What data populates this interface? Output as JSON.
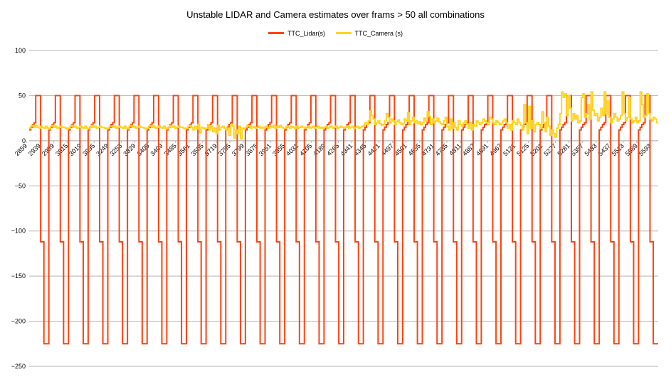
{
  "chart_data": {
    "type": "line",
    "title": "Unstable LIDAR and Camera estimates over frams > 50 all combinations",
    "xlabel": "",
    "ylabel": "",
    "ylim": [
      -250,
      100
    ],
    "y_ticks": [
      100,
      50,
      0,
      -50,
      -100,
      -150,
      -200,
      -250
    ],
    "grid": "horizontal-only",
    "legend_position": "top-center",
    "x_tick_labels": [
      "2859",
      "2939",
      "2989",
      "3015",
      "3019",
      "3095",
      "3249",
      "3253",
      "3329",
      "3405",
      "3409",
      "3485",
      "3561",
      "3565",
      "3719",
      "3795",
      "3799",
      "3875",
      "3951",
      "3955",
      "4031",
      "4105",
      "4189",
      "4265",
      "4341",
      "4345",
      "4421",
      "4497",
      "4501",
      "4655",
      "4731",
      "4735",
      "4811",
      "4887",
      "4891",
      "4967",
      "5121",
      "5125",
      "5201",
      "5277",
      "5281",
      "5357",
      "5433",
      "5437",
      "5513",
      "5589",
      "5593"
    ],
    "series": [
      {
        "name": "TTC_Lidar(s)",
        "color": "#ff420e"
      },
      {
        "name": "TTC_Camera (s)",
        "color": "#ffd320"
      }
    ],
    "cycles": 32,
    "lidar_cycle": [
      12,
      15,
      18,
      20,
      50,
      50,
      50,
      -112,
      -112,
      -225,
      -225,
      -225
    ],
    "camera_cycles": [
      [
        14,
        16,
        17,
        15,
        17,
        15,
        14,
        16,
        15,
        14,
        16,
        14
      ],
      [
        13,
        16,
        17,
        15,
        16,
        14,
        15,
        16,
        15,
        15,
        14,
        13
      ],
      [
        14,
        16,
        17,
        15,
        16,
        14,
        15,
        16,
        15,
        14,
        16,
        14
      ],
      [
        13,
        15,
        17,
        15,
        16,
        14,
        15,
        16,
        15,
        15,
        14,
        13
      ],
      [
        14,
        16,
        16,
        15,
        16,
        14,
        15,
        16,
        15,
        14,
        16,
        14
      ],
      [
        13,
        16,
        17,
        15,
        16,
        14,
        15,
        16,
        15,
        15,
        14,
        13
      ],
      [
        14,
        16,
        17,
        15,
        16,
        14,
        15,
        16,
        15,
        14,
        16,
        14
      ],
      [
        13,
        15,
        17,
        15,
        16,
        14,
        15,
        16,
        15,
        15,
        14,
        13
      ],
      [
        14,
        16,
        17,
        15,
        12,
        16,
        13,
        18,
        9,
        15,
        14,
        13
      ],
      [
        14,
        18,
        12,
        16,
        10,
        14,
        8,
        17,
        12,
        15,
        16,
        14
      ],
      [
        12,
        14,
        6,
        18,
        16,
        3,
        12,
        8,
        16,
        2,
        14,
        13
      ],
      [
        15,
        17,
        16,
        14,
        15,
        16,
        14,
        15,
        16,
        14,
        15,
        14
      ],
      [
        16,
        15,
        14,
        16,
        15,
        17,
        14,
        16,
        15,
        17,
        15,
        14
      ],
      [
        14,
        16,
        15,
        14,
        16,
        15,
        14,
        16,
        14,
        15,
        16,
        15
      ],
      [
        14,
        15,
        16,
        14,
        15,
        16,
        14,
        15,
        16,
        14,
        15,
        14
      ],
      [
        15,
        16,
        14,
        15,
        16,
        14,
        15,
        16,
        14,
        15,
        16,
        15
      ],
      [
        14,
        15,
        16,
        14,
        15,
        16,
        14,
        15,
        16,
        14,
        15,
        16
      ],
      [
        17,
        20,
        18,
        22,
        33,
        28,
        24,
        18,
        20,
        22,
        19,
        17
      ],
      [
        18,
        22,
        30,
        26,
        20,
        24,
        22,
        18,
        21,
        23,
        20,
        18
      ],
      [
        19,
        24,
        22,
        31,
        18,
        22,
        26,
        20,
        22,
        19,
        21,
        18
      ],
      [
        20,
        25,
        22,
        32,
        27,
        18,
        24,
        20,
        22,
        25,
        21,
        19
      ],
      [
        18,
        22,
        26,
        16,
        12,
        24,
        14,
        20,
        15,
        12,
        22,
        18
      ],
      [
        16,
        20,
        22,
        18,
        14,
        20,
        12,
        18,
        16,
        22,
        20,
        18
      ],
      [
        20,
        24,
        22,
        20,
        18,
        26,
        24,
        20,
        18,
        22,
        20,
        18
      ],
      [
        19,
        22,
        24,
        20,
        14,
        18,
        12,
        22,
        20,
        18,
        24,
        20
      ],
      [
        17,
        12,
        40,
        20,
        8,
        38,
        14,
        22,
        10,
        18,
        20,
        18
      ],
      [
        14,
        32,
        20,
        10,
        26,
        16,
        6,
        12,
        8,
        4,
        14,
        18
      ],
      [
        30,
        54,
        48,
        52,
        28,
        50,
        36,
        22,
        30,
        24,
        28,
        20
      ],
      [
        22,
        48,
        52,
        26,
        30,
        40,
        24,
        54,
        34,
        28,
        30,
        22
      ],
      [
        26,
        36,
        28,
        54,
        30,
        44,
        26,
        20,
        24,
        30,
        26,
        22
      ],
      [
        24,
        28,
        54,
        30,
        22,
        26,
        48,
        24,
        20,
        22,
        26,
        20
      ],
      [
        22,
        54,
        40,
        26,
        28,
        52,
        30,
        24,
        22,
        26,
        24,
        20
      ]
    ]
  }
}
